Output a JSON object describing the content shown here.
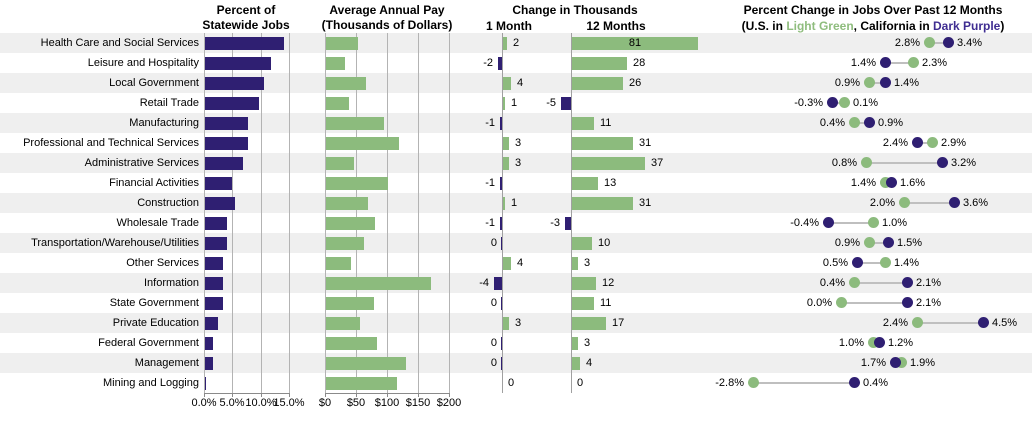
{
  "header": {
    "p1": {
      "line1": "Percent of",
      "line2": "Statewide Jobs"
    },
    "p2": {
      "line1": "Average Annual Pay",
      "line2": "(Thousands of Dollars)"
    },
    "p3": {
      "title": "Change in Thousands",
      "col1": "1 Month",
      "col2": "12 Months"
    },
    "p4": {
      "title": "Percent Change in Jobs Over Past 12 Months",
      "sub_prefix": "(U.S. in ",
      "sub_green": "Light Green",
      "sub_mid": ", California in ",
      "sub_purple": "Dark Purple",
      "sub_suffix": ")"
    }
  },
  "colors": {
    "dark_purple": "#2F1F72",
    "light_green": "#8CBB7D",
    "stripe": "#EFEFEF",
    "grid": "#B3B3B3",
    "connector": "#BFBFBF",
    "legend_green_text": "#8FBD7E",
    "legend_purple_text": "#3F2D91"
  },
  "chart_data": {
    "type": "bar",
    "layout": "small multiples: 18 industry rows x 4 linked panels, alternating gray row stripes, legend top-right",
    "categories": [
      "Health Care and Social Services",
      "Leisure and Hospitality",
      "Local Government",
      "Retail Trade",
      "Manufacturing",
      "Professional and Technical Services",
      "Administrative Services",
      "Financial Activities",
      "Construction",
      "Wholesale Trade",
      "Transportation/Warehouse/Utilities",
      "Other Services",
      "Information",
      "State Government",
      "Private Education",
      "Federal Government",
      "Management",
      "Mining and Logging"
    ],
    "panels": [
      {
        "title": "Percent of Statewide Jobs",
        "type": "bar",
        "bar_color": "dark_purple",
        "values": [
          13.9,
          11.7,
          10.4,
          9.5,
          7.5,
          7.6,
          6.7,
          4.8,
          5.3,
          3.9,
          3.9,
          3.2,
          3.1,
          3.2,
          2.3,
          1.4,
          1.4,
          0.1
        ],
        "xticks": [
          "0.0%",
          "5.0%",
          "10.0%",
          "15.0%"
        ],
        "xlim": [
          0,
          15
        ]
      },
      {
        "title": "Average Annual Pay (Thousands of Dollars)",
        "type": "bar",
        "bar_color": "light_green",
        "values": [
          52,
          30,
          64,
          37,
          93,
          117,
          45,
          100,
          67,
          79,
          62,
          41,
          169,
          77,
          55,
          82,
          129,
          115
        ],
        "xticks": [
          "$0",
          "$50",
          "$100",
          "$150",
          "$200"
        ],
        "xlim": [
          0,
          200
        ]
      },
      {
        "title": "Change in Thousands",
        "type": "bar",
        "note": "positive bars light green, negative bars dark purple, zero axis line per column",
        "series": [
          {
            "name": "1 Month",
            "values": [
              2,
              -2,
              4,
              1,
              -1,
              3,
              3,
              -1,
              1,
              -1,
              0,
              4,
              -4,
              0,
              3,
              0,
              0,
              0
            ],
            "labels": [
              "2",
              "-2",
              "4",
              "1",
              "-1",
              "3",
              "3",
              "-1",
              "1",
              "-1",
              "0",
              "4",
              "-4",
              "0",
              "3",
              "0",
              "0",
              "0"
            ],
            "label_sides": [
              "right",
              "left",
              "right",
              "right",
              "left",
              "right",
              "right",
              "left",
              "right",
              "left",
              "left",
              "right",
              "left",
              "left",
              "right",
              "left",
              "left",
              "right"
            ]
          },
          {
            "name": "12 Months",
            "values": [
              81,
              28,
              26,
              -5,
              11,
              31,
              37,
              13,
              31,
              -3,
              10,
              3,
              12,
              11,
              17,
              3,
              4,
              0
            ],
            "labels": [
              "81",
              "28",
              "26",
              "-5",
              "11",
              "31",
              "37",
              "13",
              "31",
              "-3",
              "10",
              "3",
              "12",
              "11",
              "17",
              "3",
              "4",
              "0"
            ],
            "label_sides": [
              "inside",
              "right",
              "right",
              "left",
              "right",
              "right",
              "right",
              "right",
              "right",
              "left",
              "right",
              "right",
              "right",
              "right",
              "right",
              "right",
              "right",
              "right"
            ]
          }
        ]
      },
      {
        "title": "Percent Change in Jobs Over Past 12 Months",
        "type": "dumbbell",
        "series": [
          {
            "name": "U.S.",
            "color": "light_green",
            "values": [
              2.8,
              2.3,
              0.9,
              0.1,
              0.4,
              2.9,
              0.8,
              1.4,
              2.0,
              1.0,
              0.9,
              1.4,
              0.4,
              0.0,
              2.4,
              1.0,
              1.9,
              -2.8
            ],
            "labels": [
              "2.8%",
              "2.3%",
              "0.9%",
              "0.1%",
              "0.4%",
              "2.9%",
              "0.8%",
              "1.4%",
              "2.0%",
              "1.0%",
              "0.9%",
              "1.4%",
              "0.4%",
              "0.0%",
              "2.4%",
              "1.0%",
              "1.9%",
              "-2.8%"
            ]
          },
          {
            "name": "California",
            "color": "dark_purple",
            "values": [
              3.4,
              1.4,
              1.4,
              -0.3,
              0.9,
              2.4,
              3.2,
              1.6,
              3.6,
              -0.4,
              1.5,
              0.5,
              2.1,
              2.1,
              4.5,
              1.2,
              1.7,
              0.4
            ],
            "labels": [
              "3.4%",
              "1.4%",
              "1.4%",
              "-0.3%",
              "0.9%",
              "2.4%",
              "3.2%",
              "1.6%",
              "3.6%",
              "-0.4%",
              "1.5%",
              "0.5%",
              "2.1%",
              "2.1%",
              "4.5%",
              "1.2%",
              "1.7%",
              "0.4%"
            ]
          }
        ]
      }
    ]
  }
}
